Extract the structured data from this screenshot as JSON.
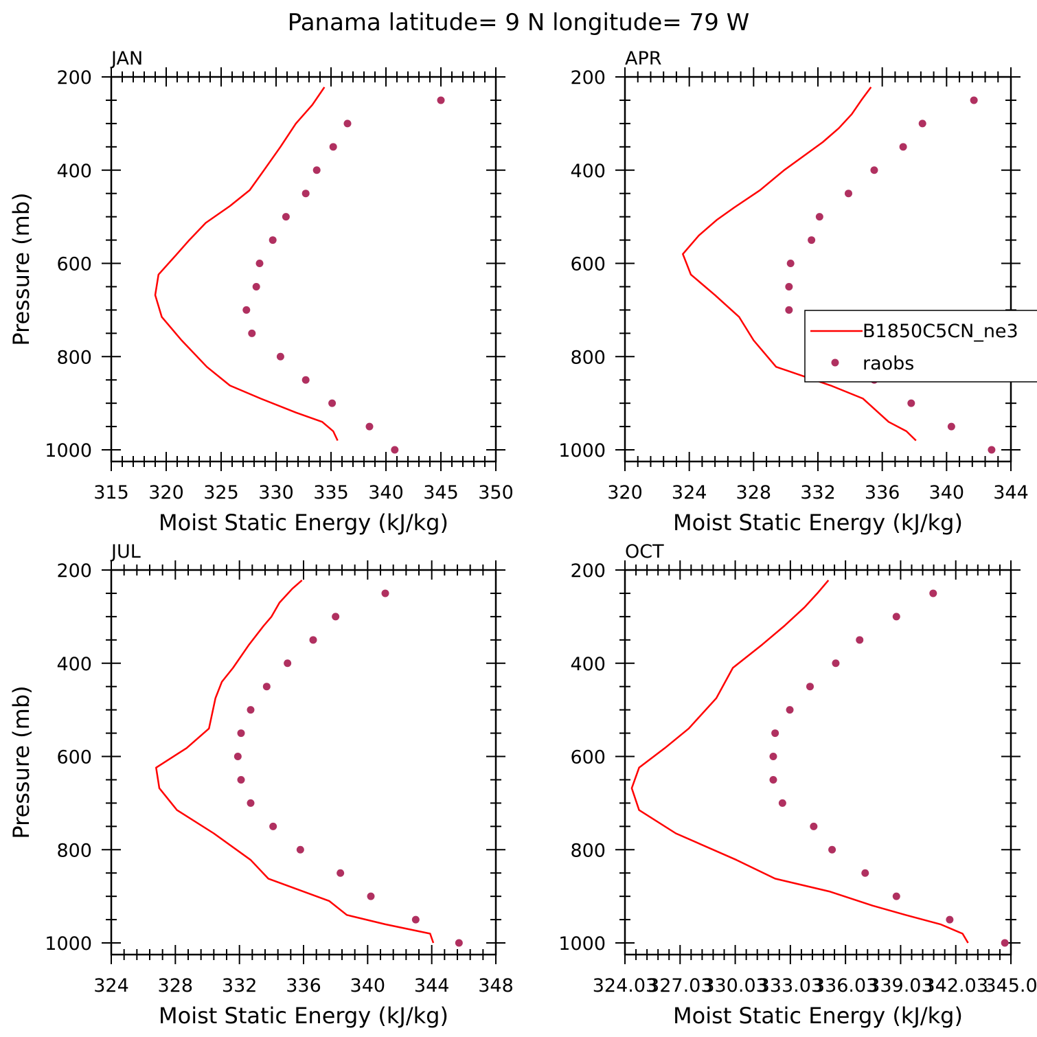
{
  "figure": {
    "title": "Panama  latitude= 9 N longitude= 79 W",
    "colors": {
      "model_line": "#ff0000",
      "obs_marker": "#b03060",
      "axes": "#000000"
    }
  },
  "chart_data": [
    {
      "type": "line",
      "panel": "JAN",
      "xlabel": "Moist Static Energy (kJ/kg)",
      "ylabel": "Pressure (mb)",
      "xlim": [
        315,
        350
      ],
      "ylim": [
        1025,
        200
      ],
      "yticks": [
        200,
        400,
        600,
        800,
        1000
      ],
      "xticks": [
        315,
        320,
        325,
        330,
        335,
        340,
        345,
        350
      ],
      "xtick_labels": [
        "315",
        "320",
        "325",
        "330",
        "335",
        "340",
        "345",
        "350"
      ],
      "series": [
        {
          "name": "B1850C5CN_ne3",
          "style": "line",
          "x": [
            334.4,
            333.3,
            331.8,
            330.4,
            328.9,
            327.6,
            325.8,
            323.6,
            322.1,
            320.9,
            319.3,
            319.0,
            319.6,
            321.4,
            323.7,
            325.8,
            328.6,
            331.8,
            334.2,
            335.2,
            335.6
          ],
          "y": [
            222,
            260,
            300,
            350,
            400,
            443,
            477,
            513,
            550,
            582,
            624,
            668,
            715,
            765,
            822,
            862,
            890,
            920,
            940,
            960,
            980
          ]
        },
        {
          "name": "raobs",
          "style": "markers",
          "x": [
            345.0,
            336.5,
            335.2,
            333.7,
            332.7,
            330.9,
            329.7,
            328.5,
            328.2,
            327.3,
            327.8,
            330.4,
            332.7,
            335.1,
            338.5,
            340.8
          ],
          "y": [
            250,
            300,
            350,
            400,
            450,
            500,
            550,
            600,
            650,
            700,
            750,
            800,
            850,
            900,
            950,
            1000
          ]
        }
      ]
    },
    {
      "type": "line",
      "panel": "APR",
      "xlabel": "Moist Static Energy (kJ/kg)",
      "ylabel": "",
      "xlim": [
        320,
        344
      ],
      "ylim": [
        1025,
        200
      ],
      "yticks": [
        200,
        400,
        600,
        800,
        1000
      ],
      "xticks": [
        320,
        324,
        328,
        332,
        336,
        340,
        344
      ],
      "xtick_labels": [
        "320",
        "324",
        "328",
        "332",
        "336",
        "340",
        "344"
      ],
      "legend": {
        "position": "right",
        "entries": [
          "B1850C5CN_ne3",
          "raobs"
        ]
      },
      "series": [
        {
          "name": "B1850C5CN_ne3",
          "style": "line",
          "x": [
            335.3,
            334.7,
            334.1,
            333.3,
            332.3,
            331.3,
            329.9,
            328.4,
            326.8,
            325.7,
            324.6,
            323.6,
            324.1,
            325.6,
            327.1,
            328.0,
            329.4,
            332.8,
            334.8,
            336.4,
            337.5,
            338.1
          ],
          "y": [
            222,
            250,
            280,
            310,
            340,
            365,
            400,
            443,
            480,
            507,
            540,
            580,
            624,
            668,
            715,
            765,
            822,
            862,
            890,
            940,
            960,
            980
          ]
        },
        {
          "name": "raobs",
          "style": "markers",
          "x": [
            341.7,
            338.5,
            337.3,
            335.5,
            333.9,
            332.1,
            331.6,
            330.3,
            330.2,
            330.2,
            332.1,
            334.0,
            335.5,
            337.8,
            340.3,
            342.8
          ],
          "y": [
            250,
            300,
            350,
            400,
            450,
            500,
            550,
            600,
            650,
            700,
            750,
            800,
            850,
            900,
            950,
            1000
          ]
        }
      ]
    },
    {
      "type": "line",
      "panel": "JUL",
      "xlabel": "Moist Static Energy (kJ/kg)",
      "ylabel": "Pressure (mb)",
      "xlim": [
        324,
        348
      ],
      "ylim": [
        1025,
        200
      ],
      "yticks": [
        200,
        400,
        600,
        800,
        1000
      ],
      "xticks": [
        324,
        328,
        332,
        336,
        340,
        344,
        348
      ],
      "xtick_labels": [
        "324",
        "328",
        "332",
        "336",
        "340",
        "344",
        "348"
      ],
      "series": [
        {
          "name": "B1850C5CN_ne3",
          "style": "line",
          "x": [
            335.9,
            335.3,
            334.5,
            334.0,
            333.5,
            332.6,
            331.6,
            330.9,
            330.5,
            330.1,
            328.7,
            326.8,
            327.0,
            328.1,
            330.4,
            332.7,
            333.8,
            337.6,
            338.7,
            341.1,
            343.9,
            344.1
          ],
          "y": [
            222,
            240,
            270,
            300,
            320,
            360,
            410,
            440,
            475,
            540,
            582,
            624,
            668,
            715,
            765,
            822,
            862,
            910,
            940,
            960,
            980,
            1000
          ]
        },
        {
          "name": "raobs",
          "style": "markers",
          "x": [
            341.1,
            338.0,
            336.6,
            335.0,
            333.7,
            332.7,
            332.1,
            331.9,
            332.1,
            332.7,
            334.1,
            335.8,
            338.3,
            340.2,
            343.0,
            345.7
          ],
          "y": [
            250,
            300,
            350,
            400,
            450,
            500,
            550,
            600,
            650,
            700,
            750,
            800,
            850,
            900,
            950,
            1000
          ]
        }
      ]
    },
    {
      "type": "line",
      "panel": "OCT",
      "xlabel": "Moist Static Energy (kJ/kg)",
      "ylabel": "",
      "xlim": [
        324.03,
        345.03
      ],
      "ylim": [
        1025,
        200
      ],
      "yticks": [
        200,
        400,
        600,
        800,
        1000
      ],
      "xticks": [
        324.03,
        327.03,
        330.03,
        333.03,
        336.03,
        339.03,
        342.03,
        345.03
      ],
      "xtick_labels": [
        "324.03",
        "327.03",
        "330.03",
        "333.03",
        "336.03",
        "339.03",
        "342.03",
        "345.0"
      ],
      "series": [
        {
          "name": "B1850C5CN_ne3",
          "style": "line",
          "x": [
            335.1,
            334.5,
            333.8,
            332.7,
            331.5,
            329.9,
            329.0,
            327.5,
            326.2,
            324.8,
            324.4,
            324.8,
            326.8,
            330.1,
            332.2,
            335.2,
            337.5,
            339.3,
            341.2,
            342.4,
            342.7
          ],
          "y": [
            222,
            250,
            280,
            320,
            360,
            410,
            475,
            540,
            582,
            624,
            668,
            715,
            765,
            822,
            862,
            890,
            920,
            940,
            960,
            980,
            1000
          ]
        },
        {
          "name": "raobs",
          "style": "markers",
          "x": [
            340.8,
            338.8,
            336.8,
            335.5,
            334.1,
            333.0,
            332.2,
            332.1,
            332.1,
            332.6,
            334.3,
            335.3,
            337.1,
            338.8,
            341.7,
            344.7
          ],
          "y": [
            250,
            300,
            350,
            400,
            450,
            500,
            550,
            600,
            650,
            700,
            750,
            800,
            850,
            900,
            950,
            1000
          ]
        }
      ]
    }
  ]
}
